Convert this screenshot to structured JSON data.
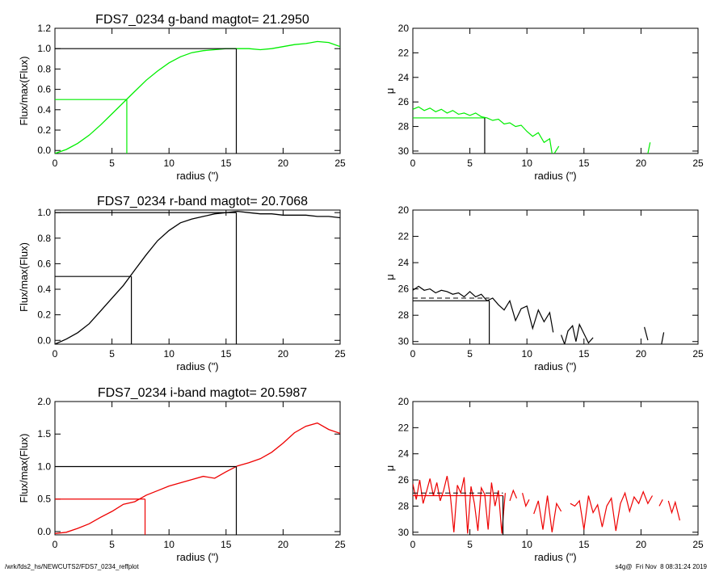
{
  "colors": {
    "g": "#00ee00",
    "r": "#000000",
    "i": "#ee0000",
    "frame": "#000000"
  },
  "footer": {
    "left": "/wrk/fds2_hs/NEWCUTS2/FDS7_0234_reffplot",
    "right": "s4g@  Fri Nov  8 08:31:24 2019"
  },
  "chart_data": [
    {
      "type": "line",
      "band": "g",
      "title": "FDS7_0234 g-band  magtot=     21.2950",
      "xlabel": "radius (\")",
      "ylabel": "Flux/max(Flux)",
      "xlim": [
        0,
        25
      ],
      "ylim": [
        -0.03,
        1.2
      ],
      "xticks": [
        0,
        5,
        10,
        15,
        20,
        25
      ],
      "yticks": [
        0.0,
        0.2,
        0.4,
        0.6,
        0.8,
        1.0,
        1.2
      ],
      "ytick_labels": [
        "0.0",
        "0.2",
        "0.4",
        "0.6",
        "0.8",
        "1.0",
        "1.2"
      ],
      "curve_x": [
        0,
        1,
        2,
        3,
        4,
        5,
        6,
        7,
        8,
        9,
        10,
        11,
        12,
        13,
        14,
        15,
        16,
        17,
        18,
        19,
        20,
        21,
        22,
        23,
        24,
        25
      ],
      "curve_y": [
        -0.03,
        0.01,
        0.07,
        0.15,
        0.25,
        0.36,
        0.47,
        0.58,
        0.69,
        0.78,
        0.86,
        0.92,
        0.96,
        0.98,
        0.99,
        1.0,
        1.0,
        1.0,
        0.99,
        1.0,
        1.02,
        1.04,
        1.05,
        1.07,
        1.06,
        1.02
      ],
      "half_light": {
        "x": 6.3,
        "y": 0.5
      },
      "total": {
        "x": 15.9,
        "y": 1.0
      }
    },
    {
      "type": "line",
      "band": "g",
      "xlabel": "radius (\")",
      "ylabel": "μ",
      "xlim": [
        0,
        25
      ],
      "ylim": [
        30.2,
        20
      ],
      "inverted_y": true,
      "xticks": [
        0,
        5,
        10,
        15,
        20,
        25
      ],
      "yticks": [
        20,
        22,
        24,
        26,
        28,
        30
      ],
      "ytick_labels": [
        "20",
        "22",
        "24",
        "26",
        "28",
        "30"
      ],
      "segments": [
        {
          "x": [
            0,
            0.5,
            1,
            1.5,
            2,
            2.5,
            3,
            3.5,
            4,
            4.5,
            5,
            5.5,
            6,
            6.5,
            7,
            7.5,
            8,
            8.5,
            9,
            9.5,
            10,
            10.5,
            11,
            11.5,
            12,
            12.2
          ],
          "y": [
            26.6,
            26.4,
            26.7,
            26.5,
            26.8,
            26.6,
            26.9,
            26.7,
            27.0,
            26.9,
            27.1,
            26.9,
            27.2,
            27.3,
            27.5,
            27.4,
            27.8,
            27.7,
            28.0,
            27.9,
            28.4,
            28.8,
            28.5,
            29.3,
            29.0,
            30.2
          ]
        },
        {
          "x": [
            12.4,
            12.8
          ],
          "y": [
            30.2,
            29.6
          ]
        },
        {
          "x": [
            20.6,
            20.8
          ],
          "y": [
            30.2,
            29.3
          ]
        }
      ],
      "level_mu": 27.3,
      "half_light_x": 6.3
    },
    {
      "type": "line",
      "band": "r",
      "title": "FDS7_0234 r-band  magtot=     20.7068",
      "xlabel": "radius (\")",
      "ylabel": "Flux/max(Flux)",
      "xlim": [
        0,
        25
      ],
      "ylim": [
        -0.03,
        1.02
      ],
      "xticks": [
        0,
        5,
        10,
        15,
        20,
        25
      ],
      "yticks": [
        0.0,
        0.2,
        0.4,
        0.6,
        0.8,
        1.0
      ],
      "ytick_labels": [
        "0.0",
        "0.2",
        "0.4",
        "0.6",
        "0.8",
        "1.0"
      ],
      "curve_x": [
        0,
        1,
        2,
        3,
        4,
        5,
        6,
        7,
        8,
        9,
        10,
        11,
        12,
        13,
        14,
        15,
        16,
        17,
        18,
        19,
        20,
        21,
        22,
        23,
        24,
        25
      ],
      "curve_y": [
        -0.03,
        0.01,
        0.06,
        0.13,
        0.23,
        0.33,
        0.43,
        0.55,
        0.67,
        0.78,
        0.86,
        0.92,
        0.95,
        0.97,
        0.99,
        1.0,
        1.01,
        1.0,
        0.99,
        0.99,
        0.98,
        0.98,
        0.98,
        0.97,
        0.97,
        0.96
      ],
      "half_light": {
        "x": 6.7,
        "y": 0.5
      },
      "total": {
        "x": 15.9,
        "y": 1.0
      }
    },
    {
      "type": "line",
      "band": "r",
      "xlabel": "radius (\")",
      "ylabel": "μ",
      "xlim": [
        0,
        25
      ],
      "ylim": [
        30.2,
        20
      ],
      "inverted_y": true,
      "xticks": [
        0,
        5,
        10,
        15,
        20,
        25
      ],
      "yticks": [
        20,
        22,
        24,
        26,
        28,
        30
      ],
      "ytick_labels": [
        "20",
        "22",
        "24",
        "26",
        "28",
        "30"
      ],
      "segments": [
        {
          "x": [
            0,
            0.5,
            1,
            1.5,
            2,
            2.5,
            3,
            3.5,
            4,
            4.5,
            5,
            5.5,
            6,
            6.5,
            7,
            7.5,
            8,
            8.5,
            9,
            9.5,
            10,
            10.5,
            11,
            11.5,
            12,
            12.3
          ],
          "y": [
            26.1,
            25.8,
            26.1,
            26.0,
            26.3,
            26.1,
            26.2,
            26.4,
            26.3,
            26.6,
            26.2,
            26.6,
            26.4,
            26.9,
            26.7,
            27.2,
            27.6,
            26.9,
            28.4,
            27.5,
            27.3,
            29.0,
            27.6,
            28.5,
            27.8,
            29.3
          ]
        },
        {
          "x": [
            13.0,
            13.3,
            13.6,
            14.0,
            14.3,
            14.6,
            15.0,
            15.4,
            15.8
          ],
          "y": [
            29.5,
            30.2,
            29.2,
            28.8,
            30.0,
            28.7,
            29.4,
            30.1,
            29.7
          ]
        },
        {
          "x": [
            20.3,
            20.6
          ],
          "y": [
            28.9,
            29.9
          ]
        },
        {
          "x": [
            21.8,
            22.0
          ],
          "y": [
            30.2,
            29.3
          ]
        }
      ],
      "level_mu": 26.9,
      "dashed_mu": 26.7,
      "half_light_x": 6.7
    },
    {
      "type": "line",
      "band": "i",
      "title": "FDS7_0234 i-band  magtot=     20.5987",
      "xlabel": "radius (\")",
      "ylabel": "Flux/max(Flux)",
      "xlim": [
        0,
        25
      ],
      "ylim": [
        -0.05,
        2.0
      ],
      "xticks": [
        0,
        5,
        10,
        15,
        20,
        25
      ],
      "yticks": [
        0.0,
        0.5,
        1.0,
        1.5,
        2.0
      ],
      "ytick_labels": [
        "0.0",
        "0.5",
        "1.0",
        "1.5",
        "2.0"
      ],
      "curve_x": [
        0,
        1,
        2,
        3,
        4,
        5,
        6,
        7,
        8,
        9,
        10,
        11,
        12,
        13,
        14,
        15,
        16,
        17,
        18,
        19,
        20,
        21,
        22,
        23,
        24,
        25
      ],
      "curve_y": [
        -0.03,
        -0.01,
        0.05,
        0.12,
        0.22,
        0.31,
        0.42,
        0.46,
        0.56,
        0.63,
        0.7,
        0.75,
        0.8,
        0.85,
        0.82,
        0.92,
        1.01,
        1.06,
        1.12,
        1.22,
        1.36,
        1.52,
        1.62,
        1.67,
        1.57,
        1.51
      ],
      "half_light": {
        "x": 7.9,
        "y": 0.5
      },
      "total": {
        "x": 15.9,
        "y": 1.0
      }
    },
    {
      "type": "line",
      "band": "i",
      "xlabel": "radius (\")",
      "ylabel": "μ",
      "xlim": [
        0,
        25
      ],
      "ylim": [
        30.2,
        20
      ],
      "inverted_y": true,
      "xticks": [
        0,
        5,
        10,
        15,
        20,
        25
      ],
      "yticks": [
        20,
        22,
        24,
        26,
        28,
        30
      ],
      "ytick_labels": [
        "20",
        "22",
        "24",
        "26",
        "28",
        "30"
      ],
      "segments": [
        {
          "x": [
            0,
            0.3,
            0.6,
            0.9,
            1.2,
            1.5,
            1.8,
            2.1,
            2.4,
            2.7,
            3.0,
            3.3,
            3.6,
            3.9,
            4.2,
            4.5,
            4.8,
            5.1,
            5.4,
            5.7,
            6.0,
            6.3,
            6.6,
            6.9,
            7.2,
            7.5,
            7.8,
            8.1
          ],
          "y": [
            26.3,
            27.5,
            26.0,
            27.8,
            26.9,
            25.9,
            27.2,
            26.2,
            27.6,
            26.8,
            25.7,
            27.3,
            30.0,
            26.4,
            27.0,
            25.8,
            30.1,
            26.5,
            27.8,
            29.9,
            26.6,
            27.1,
            29.8,
            26.2,
            28.0,
            26.8,
            30.1,
            27.0
          ]
        },
        {
          "x": [
            8.5,
            8.8,
            9.1
          ],
          "y": [
            27.6,
            26.8,
            27.4
          ]
        },
        {
          "x": [
            9.6,
            9.9,
            10.2
          ],
          "y": [
            27.0,
            28.0,
            27.5
          ]
        },
        {
          "x": [
            10.6,
            11.0,
            11.4,
            11.8,
            12.2,
            12.6,
            13.0
          ],
          "y": [
            28.6,
            27.6,
            29.8,
            27.2,
            30.0,
            27.8,
            28.4
          ]
        },
        {
          "x": [
            13.8,
            14.2,
            14.6,
            15.0,
            15.4,
            15.8,
            16.2,
            16.6,
            17.0,
            17.4,
            17.8,
            18.2,
            18.6,
            19.0,
            19.4,
            19.8,
            20.2,
            20.6,
            21.0
          ],
          "y": [
            27.8,
            28.0,
            27.6,
            29.8,
            27.2,
            28.5,
            27.9,
            29.6,
            28.0,
            27.4,
            29.9,
            27.8,
            27.0,
            28.4,
            27.3,
            27.8,
            26.9,
            27.8,
            27.2
          ]
        },
        {
          "x": [
            21.6,
            21.9
          ],
          "y": [
            28.0,
            27.5
          ]
        },
        {
          "x": [
            22.4,
            22.7,
            23.0,
            23.4
          ],
          "y": [
            27.6,
            28.5,
            27.7,
            29.1
          ]
        }
      ],
      "level_mu": 27.2,
      "dashed_mu": 27.0,
      "half_light_x": 7.9
    }
  ]
}
